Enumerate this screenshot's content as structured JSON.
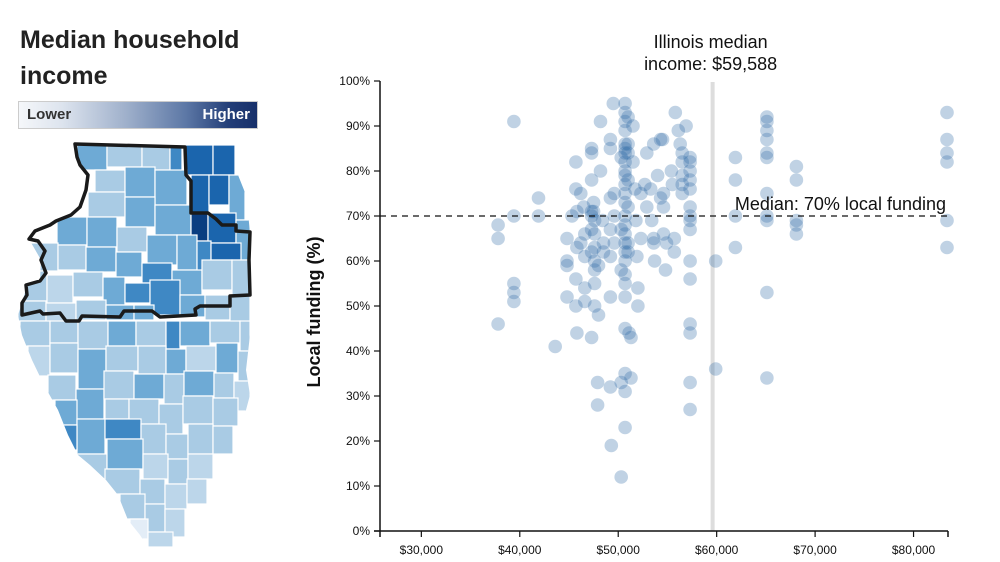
{
  "map": {
    "title": "Median household income",
    "legend_low": "Lower",
    "legend_high": "Higher",
    "color_scale": [
      "#e3edf7",
      "#bcd6ea",
      "#a9cbe4",
      "#6eaad5",
      "#3f88c4",
      "#1b65ad",
      "#0a3d80"
    ]
  },
  "chart_data": {
    "type": "scatter",
    "title": "",
    "xlabel": "",
    "ylabel": "Local funding (%)",
    "xlim": [
      25800,
      83500
    ],
    "ylim": [
      0,
      100
    ],
    "x_ticks": [
      30000,
      40000,
      50000,
      60000,
      70000,
      80000
    ],
    "x_tick_labels": [
      "$30,000",
      "$40,000",
      "$50,000",
      "$60,000",
      "$70,000",
      "$80,000"
    ],
    "y_ticks": [
      0,
      10,
      20,
      30,
      40,
      50,
      60,
      70,
      80,
      90,
      100
    ],
    "y_tick_labels": [
      "0%",
      "10%",
      "20%",
      "30%",
      "40%",
      "50%",
      "60%",
      "70%",
      "80%",
      "90%",
      "100%"
    ],
    "point_color": "#2e6aa6",
    "point_opacity": 0.3,
    "reference_lines": [
      {
        "axis": "x",
        "value": 59588,
        "label_line1": "Illinois median",
        "label_line2": "income: $59,588",
        "color": "#dddddd"
      },
      {
        "axis": "y",
        "value": 70,
        "label": "Median: 70% local funding",
        "style": "dashed"
      }
    ],
    "points": [
      [
        37800,
        68
      ],
      [
        37800,
        65
      ],
      [
        37800,
        46
      ],
      [
        39400,
        91
      ],
      [
        39400,
        70
      ],
      [
        39400,
        55
      ],
      [
        39400,
        53
      ],
      [
        39400,
        51
      ],
      [
        41900,
        70
      ],
      [
        41900,
        74
      ],
      [
        43600,
        41
      ],
      [
        44800,
        60
      ],
      [
        44800,
        59
      ],
      [
        44800,
        65
      ],
      [
        44800,
        52
      ],
      [
        45300,
        70
      ],
      [
        45700,
        82
      ],
      [
        45700,
        76
      ],
      [
        45800,
        71
      ],
      [
        45800,
        63
      ],
      [
        45700,
        50
      ],
      [
        45800,
        44
      ],
      [
        45700,
        56
      ],
      [
        46200,
        75
      ],
      [
        46200,
        64
      ],
      [
        46500,
        72
      ],
      [
        46600,
        66
      ],
      [
        46600,
        61
      ],
      [
        46600,
        54
      ],
      [
        46600,
        51
      ],
      [
        47300,
        85
      ],
      [
        47300,
        84
      ],
      [
        47300,
        78
      ],
      [
        47300,
        71
      ],
      [
        47300,
        70
      ],
      [
        47300,
        67
      ],
      [
        47300,
        62
      ],
      [
        47300,
        43
      ],
      [
        47500,
        71
      ],
      [
        47500,
        73
      ],
      [
        47600,
        69
      ],
      [
        47600,
        66
      ],
      [
        47600,
        63
      ],
      [
        47600,
        60
      ],
      [
        47600,
        58
      ],
      [
        47600,
        55
      ],
      [
        47600,
        50
      ],
      [
        47900,
        33
      ],
      [
        47900,
        28
      ],
      [
        48000,
        59
      ],
      [
        48000,
        48
      ],
      [
        48200,
        91
      ],
      [
        48200,
        80
      ],
      [
        48400,
        69
      ],
      [
        48500,
        64
      ],
      [
        48500,
        62
      ],
      [
        49200,
        87
      ],
      [
        49200,
        85
      ],
      [
        49200,
        74
      ],
      [
        49200,
        67
      ],
      [
        49200,
        61
      ],
      [
        49200,
        52
      ],
      [
        49200,
        32
      ],
      [
        49300,
        19
      ],
      [
        49500,
        95
      ],
      [
        49600,
        75
      ],
      [
        49600,
        70
      ],
      [
        49600,
        64
      ],
      [
        50300,
        83
      ],
      [
        50300,
        67
      ],
      [
        50300,
        58
      ],
      [
        50300,
        33
      ],
      [
        50300,
        12
      ],
      [
        50700,
        95
      ],
      [
        50700,
        93
      ],
      [
        50700,
        91
      ],
      [
        50700,
        89
      ],
      [
        50700,
        86
      ],
      [
        50700,
        85
      ],
      [
        50700,
        84
      ],
      [
        50700,
        82
      ],
      [
        50700,
        80
      ],
      [
        50700,
        79
      ],
      [
        50700,
        77
      ],
      [
        50700,
        75
      ],
      [
        50700,
        73
      ],
      [
        50700,
        70
      ],
      [
        50700,
        68
      ],
      [
        50700,
        66
      ],
      [
        50700,
        64
      ],
      [
        50700,
        62
      ],
      [
        50700,
        60
      ],
      [
        50700,
        57
      ],
      [
        50700,
        55
      ],
      [
        50700,
        52
      ],
      [
        50700,
        45
      ],
      [
        50700,
        35
      ],
      [
        50700,
        31
      ],
      [
        50700,
        23
      ],
      [
        51000,
        92
      ],
      [
        51000,
        86
      ],
      [
        51000,
        84
      ],
      [
        51000,
        78
      ],
      [
        51000,
        72
      ],
      [
        51000,
        64
      ],
      [
        51000,
        62
      ],
      [
        51100,
        44
      ],
      [
        51300,
        43
      ],
      [
        51300,
        34
      ],
      [
        51500,
        90
      ],
      [
        51500,
        82
      ],
      [
        51700,
        76
      ],
      [
        51800,
        69
      ],
      [
        51900,
        61
      ],
      [
        52000,
        54
      ],
      [
        52000,
        50
      ],
      [
        52300,
        75
      ],
      [
        52300,
        65
      ],
      [
        52700,
        77
      ],
      [
        52900,
        84
      ],
      [
        52900,
        72
      ],
      [
        53300,
        76
      ],
      [
        53400,
        69
      ],
      [
        53600,
        86
      ],
      [
        53600,
        65
      ],
      [
        53600,
        64
      ],
      [
        53700,
        60
      ],
      [
        54000,
        79
      ],
      [
        54300,
        87
      ],
      [
        54300,
        74
      ],
      [
        54500,
        87
      ],
      [
        54600,
        75
      ],
      [
        54600,
        72
      ],
      [
        54600,
        66
      ],
      [
        54800,
        58
      ],
      [
        54900,
        64
      ],
      [
        55400,
        80
      ],
      [
        55500,
        77
      ],
      [
        55700,
        65
      ],
      [
        55700,
        62
      ],
      [
        55800,
        93
      ],
      [
        56100,
        89
      ],
      [
        56300,
        86
      ],
      [
        56500,
        84
      ],
      [
        56500,
        82
      ],
      [
        56500,
        79
      ],
      [
        56500,
        77
      ],
      [
        56500,
        75
      ],
      [
        56900,
        90
      ],
      [
        57300,
        83
      ],
      [
        57300,
        82
      ],
      [
        57300,
        80
      ],
      [
        57300,
        78
      ],
      [
        57300,
        76
      ],
      [
        57300,
        72
      ],
      [
        57300,
        70
      ],
      [
        57300,
        69
      ],
      [
        57300,
        67
      ],
      [
        57300,
        60
      ],
      [
        57300,
        56
      ],
      [
        57300,
        46
      ],
      [
        57300,
        44
      ],
      [
        57300,
        33
      ],
      [
        57300,
        27
      ],
      [
        59900,
        60
      ],
      [
        59900,
        36
      ],
      [
        61900,
        83
      ],
      [
        61900,
        78
      ],
      [
        61900,
        70
      ],
      [
        61900,
        63
      ],
      [
        65100,
        92
      ],
      [
        65100,
        91
      ],
      [
        65100,
        89
      ],
      [
        65100,
        87
      ],
      [
        65100,
        84
      ],
      [
        65100,
        83
      ],
      [
        65100,
        75
      ],
      [
        65100,
        70
      ],
      [
        65100,
        69
      ],
      [
        65100,
        53
      ],
      [
        65100,
        34
      ],
      [
        68100,
        81
      ],
      [
        68100,
        78
      ],
      [
        68100,
        69
      ],
      [
        68100,
        68
      ],
      [
        68100,
        66
      ],
      [
        83400,
        93
      ],
      [
        83400,
        87
      ],
      [
        83400,
        84
      ],
      [
        83400,
        82
      ],
      [
        83400,
        69
      ],
      [
        83400,
        63
      ]
    ]
  }
}
